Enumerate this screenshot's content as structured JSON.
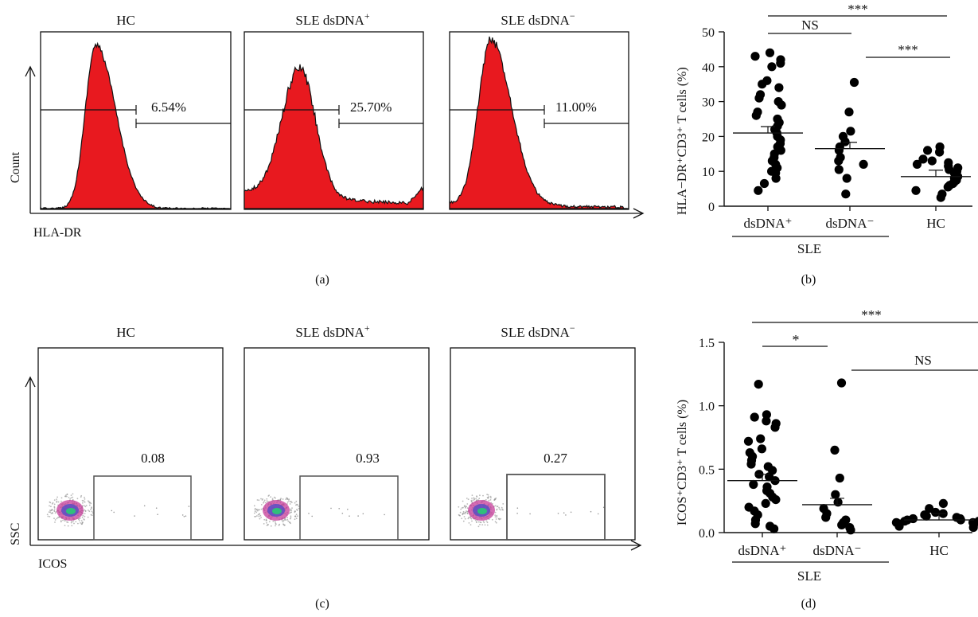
{
  "panels": {
    "a": {
      "letter": "(a)",
      "y_axis_label": "Count",
      "x_axis_label": "HLA-DR",
      "histograms": [
        {
          "title": "HC",
          "gate_percent": "6.54%",
          "fill_color": "#e8191f"
        },
        {
          "title": "SLE dsDNA",
          "title_sup": "+",
          "gate_percent": "25.70%",
          "fill_color": "#e8191f"
        },
        {
          "title": "SLE dsDNA",
          "title_sup": "−",
          "gate_percent": "11.00%",
          "fill_color": "#e8191f"
        }
      ]
    },
    "b": {
      "letter": "(b)",
      "y_axis_label": "HLA−DR⁺CD3⁺ T cells (%)",
      "group_label": "SLE",
      "significance": [
        {
          "label": "NS"
        },
        {
          "label": "***"
        },
        {
          "label": "***"
        }
      ]
    },
    "c": {
      "letter": "(c)",
      "y_axis_label": "SSC",
      "x_axis_label": "ICOS",
      "plots": [
        {
          "title": "HC",
          "gate_value": "0.08"
        },
        {
          "title": "SLE dsDNA",
          "title_sup": "+",
          "gate_value": "0.93"
        },
        {
          "title": "SLE dsDNA",
          "title_sup": "−",
          "gate_value": "0.27"
        }
      ]
    },
    "d": {
      "letter": "(d)",
      "y_axis_label": "ICOS⁺CD3⁺ T cells (%)",
      "group_label": "SLE",
      "significance": [
        {
          "label": "*"
        },
        {
          "label": "NS"
        },
        {
          "label": "***"
        }
      ]
    }
  },
  "chart_data": [
    {
      "type": "scatter",
      "panel": "b",
      "categories": [
        "dsDNA⁺",
        "dsDNA⁻",
        "HC"
      ],
      "ylabel": "HLA−DR⁺CD3⁺ T cells (%)",
      "ylim": [
        0,
        50
      ],
      "yticks": [
        0,
        10,
        20,
        30,
        40,
        50
      ],
      "means": [
        21,
        16.5,
        8.5
      ],
      "series": [
        {
          "values": [
            44,
            43,
            42,
            41,
            40,
            36,
            35,
            34,
            32,
            31,
            30,
            29,
            27,
            26,
            25,
            24,
            23,
            22,
            21,
            20,
            19,
            18,
            17,
            16,
            15,
            14,
            13,
            12,
            11,
            10,
            9.5,
            8,
            6.5,
            4.5
          ]
        },
        {
          "values": [
            35.5,
            27,
            21.5,
            20,
            18.5,
            17,
            16,
            14,
            13,
            12,
            10.5,
            8,
            3.5
          ]
        },
        {
          "values": [
            17,
            16,
            15.5,
            13.5,
            13,
            12.5,
            12,
            11.5,
            11,
            10.5,
            10,
            9.5,
            9,
            8.5,
            8,
            7.5,
            7,
            6.5,
            6,
            5.5,
            4.5,
            3.5,
            2.5
          ]
        }
      ]
    },
    {
      "type": "scatter",
      "panel": "d",
      "categories": [
        "dsDNA⁺",
        "dsDNA⁻",
        "HC"
      ],
      "ylabel": "ICOS⁺CD3⁺ T cells (%)",
      "ylim": [
        0,
        1.5
      ],
      "yticks": [
        "0.0",
        "0.5",
        "1.0",
        "1.5"
      ],
      "means": [
        0.41,
        0.22,
        0.1
      ],
      "series": [
        {
          "values": [
            1.17,
            0.93,
            0.91,
            0.88,
            0.86,
            0.83,
            0.74,
            0.72,
            0.66,
            0.63,
            0.6,
            0.57,
            0.54,
            0.52,
            0.49,
            0.46,
            0.44,
            0.41,
            0.38,
            0.36,
            0.33,
            0.31,
            0.28,
            0.26,
            0.23,
            0.2,
            0.17,
            0.14,
            0.1,
            0.07,
            0.05,
            0.03
          ]
        },
        {
          "values": [
            1.18,
            0.65,
            0.43,
            0.3,
            0.24,
            0.19,
            0.15,
            0.12,
            0.1,
            0.08,
            0.06,
            0.04,
            0.02
          ]
        },
        {
          "values": [
            0.23,
            0.19,
            0.16,
            0.15,
            0.14,
            0.13,
            0.12,
            0.11,
            0.11,
            0.1,
            0.1,
            0.09,
            0.09,
            0.08,
            0.08,
            0.07,
            0.07,
            0.06,
            0.05,
            0.04
          ]
        }
      ]
    }
  ]
}
